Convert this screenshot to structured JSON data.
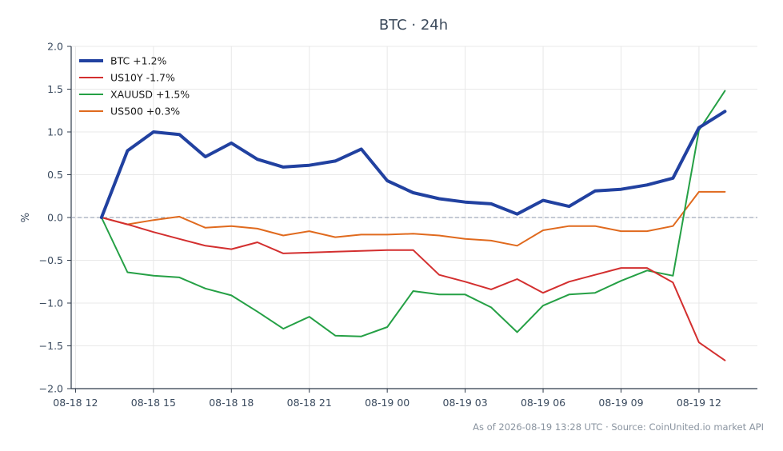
{
  "chart_data": {
    "type": "line",
    "title": "BTC · 24h",
    "xlabel": "",
    "ylabel": "%",
    "ylim": [
      -2.0,
      2.0
    ],
    "yticks": [
      -2.0,
      -1.5,
      -1.0,
      -0.5,
      0.0,
      0.5,
      1.0,
      1.5,
      2.0
    ],
    "ytick_labels": [
      "−2.0",
      "−1.5",
      "−1.0",
      "−0.5",
      "0.0",
      "0.5",
      "1.0",
      "1.5",
      "2.0"
    ],
    "xlim": [
      "2026-08-18 11:50",
      "2026-08-19 14:15"
    ],
    "xticks": [
      "2026-08-18 12:00",
      "2026-08-18 15:00",
      "2026-08-18 18:00",
      "2026-08-18 21:00",
      "2026-08-19 00:00",
      "2026-08-19 03:00",
      "2026-08-19 06:00",
      "2026-08-19 09:00",
      "2026-08-19 12:00"
    ],
    "xtick_labels": [
      "08-18 12",
      "08-18 15",
      "08-18 18",
      "08-18 21",
      "08-19 00",
      "08-19 03",
      "08-19 06",
      "08-19 09",
      "08-19 12"
    ],
    "x": [
      "2026-08-18 13:00",
      "2026-08-18 14:00",
      "2026-08-18 15:00",
      "2026-08-18 16:00",
      "2026-08-18 17:00",
      "2026-08-18 18:00",
      "2026-08-18 19:00",
      "2026-08-18 20:00",
      "2026-08-18 21:00",
      "2026-08-18 22:00",
      "2026-08-18 23:00",
      "2026-08-19 00:00",
      "2026-08-19 01:00",
      "2026-08-19 02:00",
      "2026-08-19 03:00",
      "2026-08-19 04:00",
      "2026-08-19 05:00",
      "2026-08-19 06:00",
      "2026-08-19 07:00",
      "2026-08-19 08:00",
      "2026-08-19 09:00",
      "2026-08-19 10:00",
      "2026-08-19 11:00",
      "2026-08-19 12:00",
      "2026-08-19 13:00"
    ],
    "series": [
      {
        "name": "BTC +1.2%",
        "color": "#2141a0",
        "width": "bold",
        "values": [
          0.0,
          0.78,
          1.0,
          0.97,
          0.71,
          0.87,
          0.68,
          0.59,
          0.61,
          0.66,
          0.8,
          0.43,
          0.29,
          0.22,
          0.18,
          0.16,
          0.04,
          0.2,
          0.13,
          0.31,
          0.33,
          0.38,
          0.46,
          1.05,
          1.24
        ]
      },
      {
        "name": "US10Y -1.7%",
        "color": "#d32f2f",
        "width": "normal",
        "values": [
          0.0,
          -0.08,
          -0.17,
          -0.25,
          -0.33,
          -0.37,
          -0.29,
          -0.42,
          -0.41,
          -0.4,
          -0.39,
          -0.38,
          -0.38,
          -0.67,
          -0.75,
          -0.84,
          -0.72,
          -0.88,
          -0.75,
          -0.67,
          -0.59,
          -0.59,
          -0.76,
          -1.46,
          -1.67
        ]
      },
      {
        "name": "XAUUSD +1.5%",
        "color": "#25a045",
        "width": "normal",
        "values": [
          0.0,
          -0.64,
          -0.68,
          -0.7,
          -0.83,
          -0.91,
          -1.1,
          -1.3,
          -1.16,
          -1.38,
          -1.39,
          -1.28,
          -0.86,
          -0.9,
          -0.9,
          -1.05,
          -1.34,
          -1.03,
          -0.9,
          -0.88,
          -0.74,
          -0.62,
          -0.68,
          1.02,
          1.48
        ]
      },
      {
        "name": "US500 +0.3%",
        "color": "#e06a1e",
        "width": "normal",
        "values": [
          0.0,
          -0.08,
          -0.03,
          0.01,
          -0.12,
          -0.1,
          -0.13,
          -0.21,
          -0.16,
          -0.23,
          -0.2,
          -0.2,
          -0.19,
          -0.21,
          -0.25,
          -0.27,
          -0.33,
          -0.15,
          -0.1,
          -0.1,
          -0.16,
          -0.16,
          -0.1,
          0.3,
          0.3
        ]
      }
    ],
    "legend_position": "top-left",
    "grid": true,
    "zero_line": {
      "style": "dashed",
      "color": "#8a94a8"
    },
    "footer": "As of 2026-08-19 13:28 UTC · Source: CoinUnited.io market API"
  }
}
